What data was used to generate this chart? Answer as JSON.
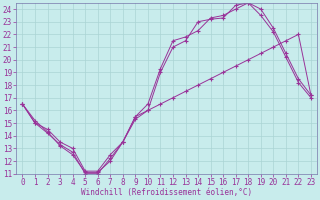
{
  "xlabel": "Windchill (Refroidissement éolien,°C)",
  "bg_color": "#c8ecec",
  "grid_color": "#aad4d4",
  "line_color": "#993399",
  "spine_color": "#7777aa",
  "xlim": [
    -0.5,
    23.5
  ],
  "ylim": [
    11,
    24.5
  ],
  "xticks": [
    0,
    1,
    2,
    3,
    4,
    5,
    6,
    7,
    8,
    9,
    10,
    11,
    12,
    13,
    14,
    15,
    16,
    17,
    18,
    19,
    20,
    21,
    22,
    23
  ],
  "yticks": [
    11,
    12,
    13,
    14,
    15,
    16,
    17,
    18,
    19,
    20,
    21,
    22,
    23,
    24
  ],
  "line1_x": [
    0,
    1,
    2,
    3,
    4,
    5,
    6,
    7,
    8,
    9,
    10,
    11,
    12,
    13,
    14,
    15,
    16,
    17,
    18,
    19,
    20,
    21,
    22,
    23
  ],
  "line1_y": [
    16.5,
    15.0,
    14.2,
    13.3,
    12.7,
    11.0,
    11.0,
    12.2,
    13.5,
    15.3,
    16.0,
    19.0,
    21.0,
    21.5,
    23.0,
    23.2,
    23.3,
    24.3,
    24.5,
    23.5,
    22.2,
    20.2,
    18.2,
    17.0
  ],
  "line2_x": [
    0,
    1,
    2,
    3,
    4,
    5,
    6,
    7,
    8,
    9,
    10,
    11,
    12,
    13,
    14,
    15,
    16,
    17,
    18,
    19,
    20,
    21,
    22,
    23
  ],
  "line2_y": [
    16.5,
    15.2,
    14.3,
    13.2,
    12.5,
    11.1,
    11.1,
    12.0,
    13.5,
    15.5,
    16.5,
    19.3,
    21.5,
    21.8,
    22.3,
    23.3,
    23.5,
    24.0,
    24.5,
    24.0,
    22.5,
    20.5,
    18.5,
    17.2
  ],
  "line3_x": [
    0,
    1,
    2,
    3,
    4,
    5,
    6,
    7,
    8,
    9,
    10,
    11,
    12,
    13,
    14,
    15,
    16,
    17,
    18,
    19,
    20,
    21,
    22,
    23
  ],
  "line3_y": [
    16.5,
    15.0,
    14.5,
    13.5,
    13.0,
    11.2,
    11.2,
    12.5,
    13.5,
    15.5,
    16.0,
    16.5,
    17.0,
    17.5,
    18.0,
    18.5,
    19.0,
    19.5,
    20.0,
    20.5,
    21.0,
    21.5,
    22.0,
    17.2
  ]
}
